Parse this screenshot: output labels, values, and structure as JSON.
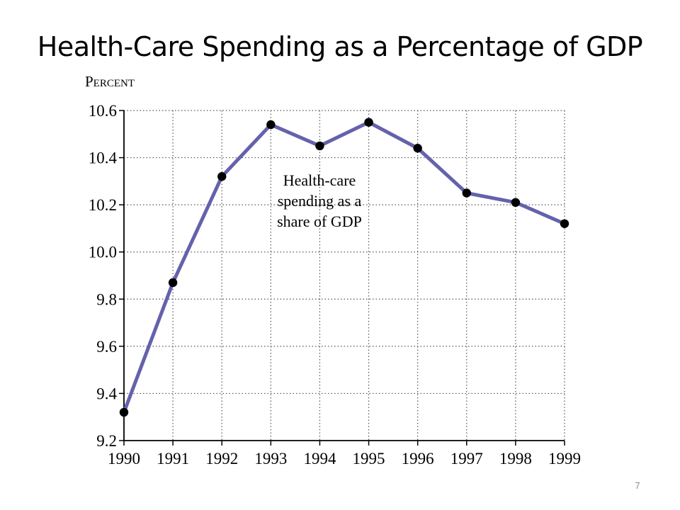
{
  "slide": {
    "title": "Health-Care Spending as a Percentage of GDP",
    "page_number": "7"
  },
  "chart_data": {
    "type": "line",
    "ylabel": "Percent",
    "xlabel": "",
    "x": [
      1990,
      1991,
      1992,
      1993,
      1994,
      1995,
      1996,
      1997,
      1998,
      1999
    ],
    "series": [
      {
        "values": [
          9.32,
          9.87,
          10.32,
          10.54,
          10.45,
          10.55,
          10.44,
          10.25,
          10.21,
          10.12
        ]
      }
    ],
    "ylim": [
      9.2,
      10.6
    ],
    "yticks": [
      "9.2",
      "9.4",
      "9.6",
      "9.8",
      "10.0",
      "10.2",
      "10.4",
      "10.6"
    ],
    "xticks": [
      "1990",
      "1991",
      "1992",
      "1993",
      "1994",
      "1995",
      "1996",
      "1997",
      "1998",
      "1999"
    ],
    "annotation": [
      "Health-care",
      "spending as a",
      "share of GDP"
    ],
    "grid": true,
    "colors": {
      "line": "#6462ab",
      "marker": "#000000",
      "grid": "#555555",
      "axis": "#000000"
    }
  }
}
